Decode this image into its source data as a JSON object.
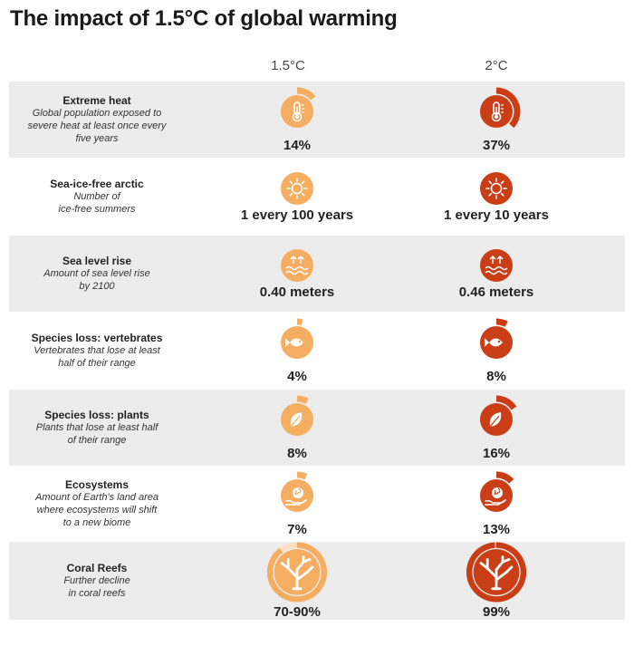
{
  "title": "The impact of 1.5°C of global warming",
  "columns": [
    "1.5°C",
    "2°C"
  ],
  "colors": {
    "light": "#f5ad62",
    "dark": "#c93d17",
    "light_track": "#fbe0c2",
    "dark_track": "#e79c84"
  },
  "chart_data": {
    "type": "table",
    "columns": [
      "1.5°C",
      "2°C"
    ],
    "rows": [
      {
        "title": "Extreme heat",
        "desc": "Global population exposed to\nsevere heat at least once every\nfive years",
        "icon": "thermometer-icon",
        "values": [
          "14%",
          "37%"
        ],
        "fractions": [
          0.14,
          0.37
        ]
      },
      {
        "title": "Sea-ice-free arctic",
        "desc": "Number of\nice-free summers",
        "icon": "sun-icon",
        "values": [
          "1 every 100 years",
          "1 every 10 years"
        ],
        "fractions": [
          null,
          null
        ]
      },
      {
        "title": "Sea level rise",
        "desc": "Amount of sea level rise\nby 2100",
        "icon": "sea-level-icon",
        "values": [
          "0.40 meters",
          "0.46 meters"
        ],
        "fractions": [
          null,
          null
        ]
      },
      {
        "title": "Species loss: vertebrates",
        "desc": "Vertebrates that lose at least\nhalf of their range",
        "icon": "fish-icon",
        "values": [
          "4%",
          "8%"
        ],
        "fractions": [
          0.04,
          0.08
        ]
      },
      {
        "title": "Species loss: plants",
        "desc": "Plants that lose at least half\nof their range",
        "icon": "leaf-icon",
        "values": [
          "8%",
          "16%"
        ],
        "fractions": [
          0.08,
          0.16
        ]
      },
      {
        "title": "Ecosystems",
        "desc": "Amount of Earth's land area\nwhere ecosystems will shift\nto a new biome",
        "icon": "globe-hand-icon",
        "values": [
          "7%",
          "13%"
        ],
        "fractions": [
          0.07,
          0.13
        ]
      },
      {
        "title": "Coral Reefs",
        "desc": "Further decline\nin coral reefs",
        "icon": "coral-icon",
        "values": [
          "70-90%",
          "99%"
        ],
        "fractions": [
          0.9,
          0.99
        ]
      }
    ]
  }
}
